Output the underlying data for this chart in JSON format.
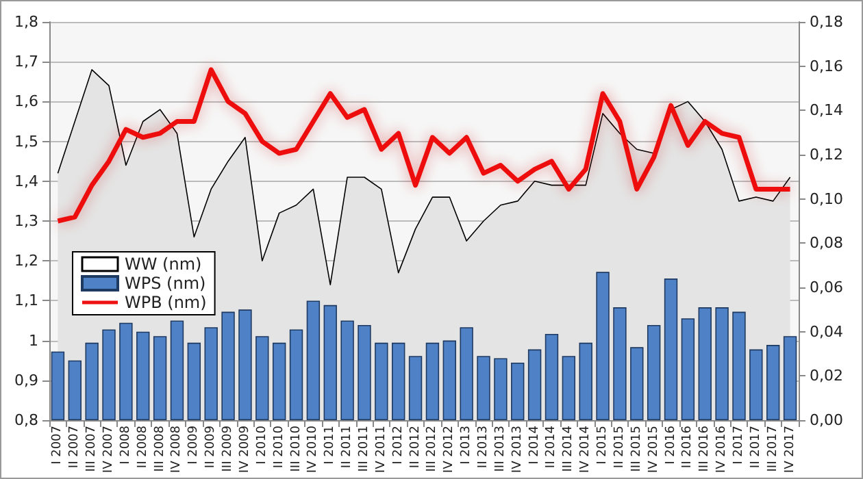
{
  "chart_data": {
    "type": "bar",
    "categories": [
      "I 2007",
      "II 2007",
      "III 2007",
      "IV 2007",
      "I 2008",
      "II 2008",
      "III 2008",
      "IV 2008",
      "I 2009",
      "II 2009",
      "III 2009",
      "IV 2009",
      "I 2010",
      "II 2010",
      "III 2010",
      "IV 2010",
      "I 2011",
      "II 2011",
      "III 2011",
      "IV 2011",
      "I 2012",
      "II 2012",
      "III 2012",
      "IV 2012",
      "I 2013",
      "II 2013",
      "III 2013",
      "IV 2013",
      "I 2014",
      "II 2014",
      "III 2014",
      "IV 2014",
      "I 2015",
      "II 2015",
      "III 2015",
      "IV 2015",
      "I 2016",
      "II 2016",
      "III 2016",
      "IV 2016",
      "I 2017",
      "II 2017",
      "III 2017",
      "IV 2017"
    ],
    "series": [
      {
        "name": "WW (nm)",
        "type": "area",
        "color": "#000000",
        "values": [
          1.42,
          1.55,
          1.68,
          1.64,
          1.44,
          1.55,
          1.58,
          1.52,
          1.26,
          1.38,
          1.45,
          1.51,
          1.2,
          1.32,
          1.34,
          1.38,
          1.14,
          1.41,
          1.41,
          1.38,
          1.17,
          1.28,
          1.36,
          1.36,
          1.25,
          1.3,
          1.34,
          1.35,
          1.4,
          1.39,
          1.39,
          1.39,
          1.57,
          1.52,
          1.48,
          1.47,
          1.58,
          1.6,
          1.55,
          1.48,
          1.35,
          1.36,
          1.35,
          1.41
        ]
      },
      {
        "name": "WPS (nm)",
        "axis": "y2",
        "color": "#4f81c7",
        "values": [
          0.031,
          0.027,
          0.035,
          0.041,
          0.044,
          0.04,
          0.038,
          0.045,
          0.035,
          0.042,
          0.049,
          0.05,
          0.038,
          0.035,
          0.041,
          0.054,
          0.052,
          0.045,
          0.043,
          0.035,
          0.035,
          0.029,
          0.035,
          0.036,
          0.042,
          0.029,
          0.028,
          0.026,
          0.032,
          0.039,
          0.029,
          0.035,
          0.067,
          0.051,
          0.033,
          0.043,
          0.064,
          0.046,
          0.051,
          0.051,
          0.049,
          0.032,
          0.034,
          0.038
        ]
      },
      {
        "name": "WPB (nm)",
        "type": "line",
        "color": "#ee1111",
        "values": [
          1.3,
          1.31,
          1.39,
          1.45,
          1.53,
          1.51,
          1.52,
          1.55,
          1.55,
          1.68,
          1.6,
          1.57,
          1.5,
          1.47,
          1.48,
          1.55,
          1.62,
          1.56,
          1.58,
          1.48,
          1.52,
          1.39,
          1.51,
          1.47,
          1.51,
          1.42,
          1.44,
          1.4,
          1.43,
          1.45,
          1.38,
          1.43,
          1.62,
          1.55,
          1.38,
          1.46,
          1.59,
          1.49,
          1.55,
          1.52,
          1.51,
          1.38,
          1.38,
          1.38
        ]
      }
    ],
    "ylim": [
      0.8,
      1.8
    ],
    "yticks": [
      {
        "value": 0.8,
        "label": "0,8"
      },
      {
        "value": 0.9,
        "label": "0,9"
      },
      {
        "value": 1,
        "label": "1"
      },
      {
        "value": 1.1,
        "label": "1,1"
      },
      {
        "value": 1.2,
        "label": "1,2"
      },
      {
        "value": 1.3,
        "label": "1,3"
      },
      {
        "value": 1.4,
        "label": "1,4"
      },
      {
        "value": 1.5,
        "label": "1,5"
      },
      {
        "value": 1.6,
        "label": "1,6"
      },
      {
        "value": 1.7,
        "label": "1,7"
      },
      {
        "value": 1.8,
        "label": "1,8"
      }
    ],
    "y2lim": [
      0,
      0.18
    ],
    "y2ticks": [
      {
        "value": 0,
        "label": "0,00"
      },
      {
        "value": 0.02,
        "label": "0,02"
      },
      {
        "value": 0.04,
        "label": "0,04"
      },
      {
        "value": 0.06,
        "label": "0,06"
      },
      {
        "value": 0.08,
        "label": "0,08"
      },
      {
        "value": 0.1,
        "label": "0,10"
      },
      {
        "value": 0.12,
        "label": "0,12"
      },
      {
        "value": 0.14,
        "label": "0,14"
      },
      {
        "value": 0.16,
        "label": "0,16"
      },
      {
        "value": 0.18,
        "label": "0,18"
      }
    ],
    "grid": "y",
    "legend": "left",
    "marker": "none"
  }
}
